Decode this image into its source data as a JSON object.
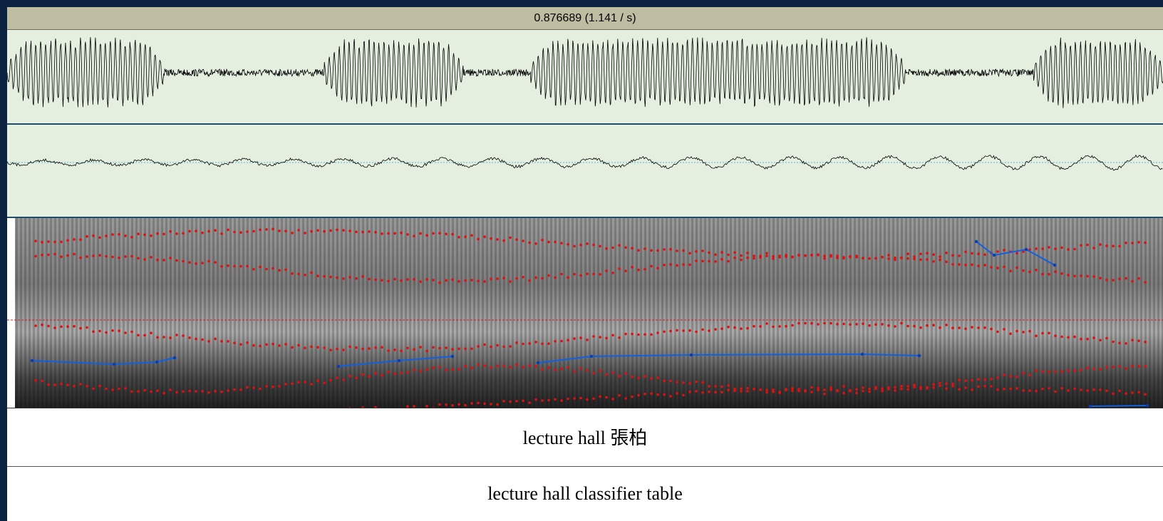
{
  "header": {
    "selection": "0.876689 (1.141 / s)"
  },
  "tiers": [
    {
      "text": "lecture hall 張柏"
    },
    {
      "text": "lecture hall classifier table"
    }
  ]
}
